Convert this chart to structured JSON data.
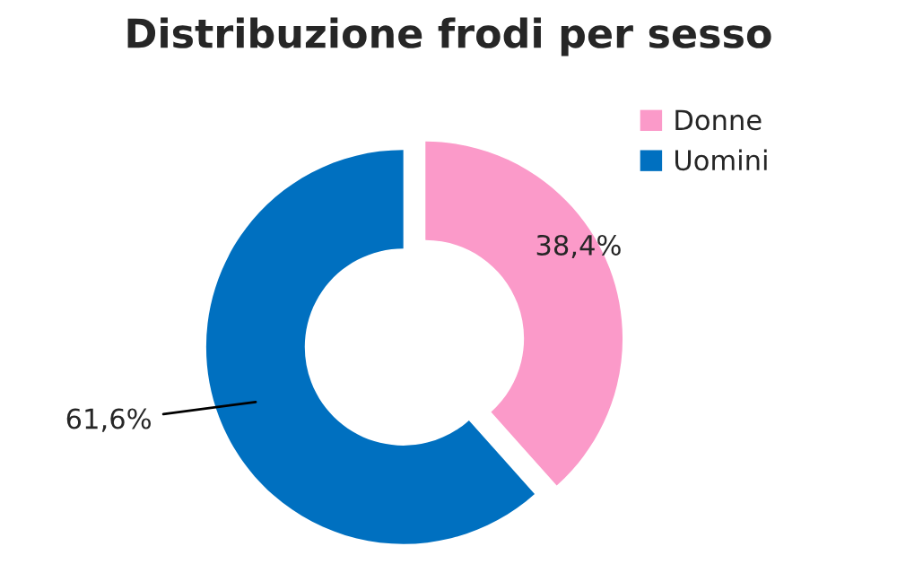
{
  "chart_data": {
    "type": "donut",
    "title": "Distribuzione frodi per sesso",
    "categories": [
      "Donne",
      "Uomini"
    ],
    "values": [
      38.4,
      61.6
    ],
    "colors": [
      "#fb9ac9",
      "#0070c0"
    ],
    "value_labels": [
      "38,4%",
      "61,6%"
    ],
    "legend": "top right"
  }
}
